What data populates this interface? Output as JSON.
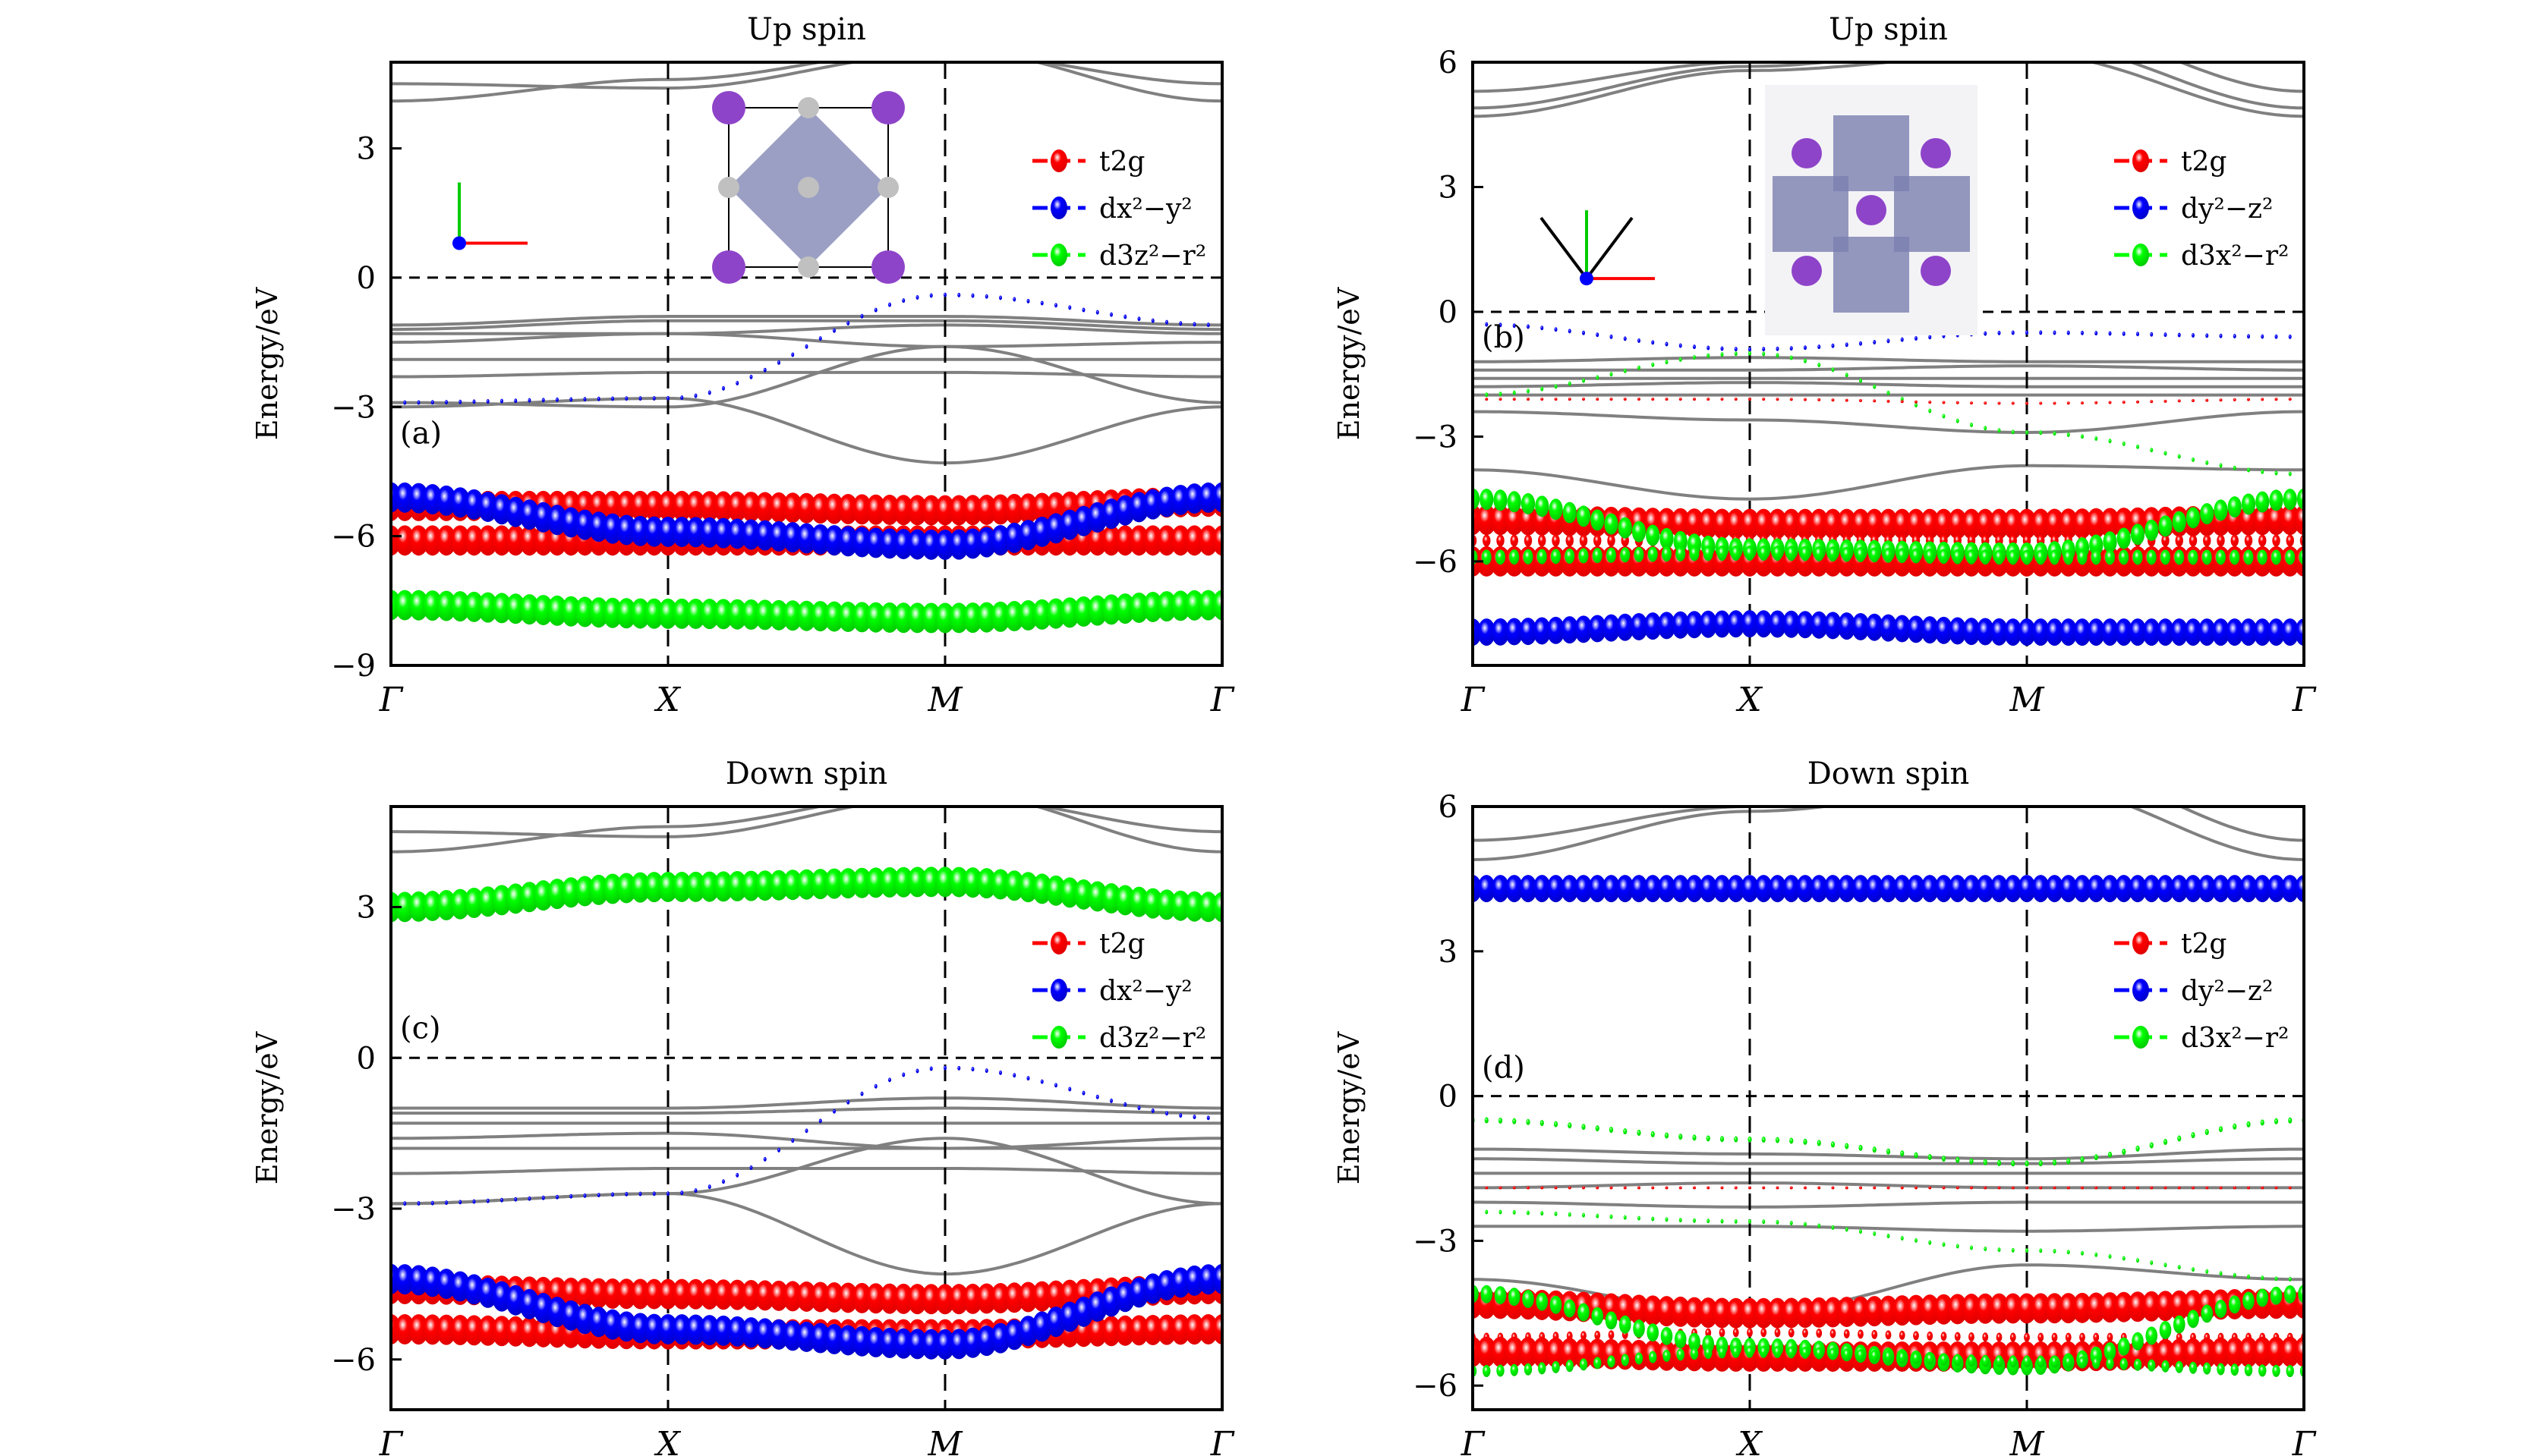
{
  "chart_data": [
    {
      "id": "a",
      "type": "line",
      "title": "Up spin",
      "panel_label": "(a)",
      "ylabel": "Energy/eV",
      "ylim": [
        -9,
        5
      ],
      "yticks": [
        -9,
        -6,
        -3,
        0,
        3
      ],
      "ytick_labels": [
        "−9",
        "−6",
        "−3",
        "0",
        "3"
      ],
      "x": [
        0,
        1,
        2,
        3
      ],
      "xtick_labels": [
        "Γ",
        "X",
        "M",
        "Γ"
      ],
      "axis_inset": "b(y) / a(x)",
      "legend": [
        "t2g",
        "dx²−y²",
        "d3z²−r²"
      ],
      "legend_placement": "top-right",
      "fermi_level": 0,
      "gray_bands": [
        [
          4.5,
          4.4,
          5.2,
          4.5
        ],
        [
          4.1,
          4.6,
          5.3,
          4.1
        ],
        [
          -1.1,
          -0.9,
          -0.9,
          -1.1
        ],
        [
          -1.2,
          -1.0,
          -1.0,
          -1.2
        ],
        [
          -1.3,
          -1.3,
          -1.1,
          -1.3
        ],
        [
          -1.5,
          -1.3,
          -1.6,
          -1.5
        ],
        [
          -1.9,
          -1.9,
          -1.9,
          -1.9
        ],
        [
          -2.3,
          -2.2,
          -2.2,
          -2.3
        ],
        [
          -3.0,
          -2.8,
          -4.3,
          -3.0
        ],
        [
          -2.9,
          -3.0,
          -1.6,
          -2.9
        ]
      ],
      "series": [
        {
          "name": "t2g",
          "color": "#ff0000",
          "values": [
            -5.3,
            -5.3,
            -5.4,
            -5.2
          ],
          "weight": 1.0
        },
        {
          "name": "t2g",
          "color": "#ff0000",
          "values": [
            -6.1,
            -6.1,
            -6.1,
            -6.1
          ],
          "weight": 1.0
        },
        {
          "name": "dx2-y2",
          "color": "#0000ff",
          "values": [
            -5.1,
            -5.9,
            -6.2,
            -5.1
          ],
          "weight": 1.0
        },
        {
          "name": "d3z2-r2",
          "color": "#00ff00",
          "values": [
            -7.6,
            -7.8,
            -7.9,
            -7.6
          ],
          "weight": 1.0
        },
        {
          "name": "dx2-y2",
          "color": "#0000ff",
          "values": [
            -2.9,
            -2.8,
            -0.4,
            -1.1
          ],
          "weight": 0.15
        }
      ]
    },
    {
      "id": "b",
      "type": "line",
      "title": "Up spin",
      "panel_label": "(b)",
      "ylabel": "Energy/eV",
      "ylim": [
        -8.5,
        6
      ],
      "yticks": [
        -6,
        -3,
        0,
        3,
        6
      ],
      "ytick_labels": [
        "−6",
        "−3",
        "0",
        "3",
        "6"
      ],
      "x": [
        0,
        1,
        2,
        3
      ],
      "xtick_labels": [
        "Γ",
        "X",
        "M",
        "Γ"
      ],
      "axis_inset": "y, b, x / a",
      "legend": [
        "t2g",
        "dy²−z²",
        "d3x²−r²"
      ],
      "legend_placement": "top-right",
      "fermi_level": 0,
      "gray_bands": [
        [
          5.3,
          6.0,
          7.0,
          5.3
        ],
        [
          4.9,
          5.9,
          6.5,
          4.9
        ],
        [
          4.7,
          5.8,
          6.2,
          4.7
        ],
        [
          -1.2,
          -1.1,
          -1.2,
          -1.2
        ],
        [
          -1.4,
          -1.4,
          -1.3,
          -1.4
        ],
        [
          -1.6,
          -1.6,
          -1.6,
          -1.6
        ],
        [
          -1.8,
          -1.7,
          -1.8,
          -1.8
        ],
        [
          -2.0,
          -2.0,
          -2.0,
          -2.0
        ],
        [
          -2.4,
          -2.6,
          -2.9,
          -2.4
        ],
        [
          -3.8,
          -4.5,
          -3.7,
          -3.8
        ]
      ],
      "series": [
        {
          "name": "dy2-z2",
          "color": "#0000ff",
          "values": [
            -0.3,
            -0.9,
            -0.5,
            -0.6
          ],
          "weight": 0.15
        },
        {
          "name": "d3x2-r2",
          "color": "#00ff00",
          "values": [
            -2.0,
            -1.0,
            -2.9,
            -3.9
          ],
          "weight": 0.15
        },
        {
          "name": "t2g",
          "color": "#ff0000",
          "values": [
            -2.1,
            -2.1,
            -2.2,
            -2.1
          ],
          "weight": 0.1
        },
        {
          "name": "t2g",
          "color": "#ff0000",
          "values": [
            -5.0,
            -5.1,
            -5.1,
            -5.0
          ],
          "weight": 1.0
        },
        {
          "name": "t2g",
          "color": "#ff0000",
          "values": [
            -5.5,
            -5.5,
            -5.5,
            -5.5
          ],
          "weight": 0.4
        },
        {
          "name": "t2g",
          "color": "#ff0000",
          "values": [
            -6.0,
            -6.0,
            -6.0,
            -6.0
          ],
          "weight": 1.0
        },
        {
          "name": "d3x2-r2",
          "color": "#00ff00",
          "values": [
            -4.5,
            -5.7,
            -5.8,
            -4.5
          ],
          "weight": 0.7
        },
        {
          "name": "d3x2-r2",
          "color": "#00ff00",
          "values": [
            -5.9,
            -5.8,
            -5.9,
            -5.9
          ],
          "weight": 0.5
        },
        {
          "name": "dy2-z2",
          "color": "#0000ff",
          "values": [
            -7.7,
            -7.5,
            -7.7,
            -7.7
          ],
          "weight": 0.9
        }
      ]
    },
    {
      "id": "c",
      "type": "line",
      "title": "Down spin",
      "panel_label": "(c)",
      "ylabel": "Energy/eV",
      "ylim": [
        -7,
        5
      ],
      "yticks": [
        -6,
        -3,
        0,
        3
      ],
      "ytick_labels": [
        "−6",
        "−3",
        "0",
        "3"
      ],
      "x": [
        0,
        1,
        2,
        3
      ],
      "xtick_labels": [
        "Γ",
        "X",
        "M",
        "Γ"
      ],
      "legend": [
        "t2g",
        "dx²−y²",
        "d3z²−r²"
      ],
      "legend_placement": "right",
      "fermi_level": 0,
      "gray_bands": [
        [
          4.5,
          4.4,
          5.2,
          4.5
        ],
        [
          4.1,
          4.6,
          5.3,
          4.1
        ],
        [
          -1.0,
          -1.0,
          -0.8,
          -1.0
        ],
        [
          -1.1,
          -1.1,
          -1.0,
          -1.1
        ],
        [
          -1.3,
          -1.3,
          -1.3,
          -1.3
        ],
        [
          -1.6,
          -1.5,
          -1.8,
          -1.6
        ],
        [
          -1.8,
          -1.8,
          -1.8,
          -1.8
        ],
        [
          -2.3,
          -2.2,
          -2.2,
          -2.3
        ],
        [
          -2.9,
          -2.7,
          -4.3,
          -2.9
        ],
        [
          -2.9,
          -2.7,
          -1.6,
          -2.9
        ]
      ],
      "series": [
        {
          "name": "d3z2-r2",
          "color": "#00ff00",
          "values": [
            3.0,
            3.4,
            3.5,
            3.0
          ],
          "weight": 1.0
        },
        {
          "name": "dx2-y2",
          "color": "#0000ff",
          "values": [
            -2.9,
            -2.7,
            -0.2,
            -1.2
          ],
          "weight": 0.15
        },
        {
          "name": "t2g",
          "color": "#ff0000",
          "values": [
            -4.6,
            -4.7,
            -4.8,
            -4.6
          ],
          "weight": 1.0
        },
        {
          "name": "t2g",
          "color": "#ff0000",
          "values": [
            -5.4,
            -5.5,
            -5.5,
            -5.4
          ],
          "weight": 1.0
        },
        {
          "name": "dx2-y2",
          "color": "#0000ff",
          "values": [
            -4.4,
            -5.4,
            -5.7,
            -4.4
          ],
          "weight": 1.0
        }
      ]
    },
    {
      "id": "d",
      "type": "line",
      "title": "Down spin",
      "panel_label": "(d)",
      "ylabel": "Energy/eV",
      "ylim": [
        -6.5,
        6
      ],
      "yticks": [
        -6,
        -3,
        0,
        3,
        6
      ],
      "ytick_labels": [
        "−6",
        "−3",
        "0",
        "3",
        "6"
      ],
      "x": [
        0,
        1,
        2,
        3
      ],
      "xtick_labels": [
        "Γ",
        "X",
        "M",
        "Γ"
      ],
      "legend": [
        "t2g",
        "dy²−z²",
        "d3x²−r²"
      ],
      "legend_placement": "right",
      "fermi_level": 0,
      "gray_bands": [
        [
          5.3,
          6.0,
          7.0,
          5.3
        ],
        [
          4.9,
          5.9,
          6.5,
          4.9
        ],
        [
          -1.1,
          -1.2,
          -1.3,
          -1.1
        ],
        [
          -1.3,
          -1.4,
          -1.4,
          -1.3
        ],
        [
          -1.6,
          -1.6,
          -1.6,
          -1.6
        ],
        [
          -1.9,
          -1.8,
          -1.9,
          -1.9
        ],
        [
          -2.2,
          -2.3,
          -2.2,
          -2.2
        ],
        [
          -2.7,
          -2.7,
          -2.8,
          -2.7
        ],
        [
          -3.8,
          -4.5,
          -3.5,
          -3.8
        ]
      ],
      "series": [
        {
          "name": "dy2-z2",
          "color": "#0000ff",
          "values": [
            4.3,
            4.3,
            4.3,
            4.3
          ],
          "weight": 0.9
        },
        {
          "name": "d3x2-r2",
          "color": "#00ff00",
          "values": [
            -0.5,
            -0.9,
            -1.4,
            -0.5
          ],
          "weight": 0.2
        },
        {
          "name": "t2g",
          "color": "#ff0000",
          "values": [
            -1.9,
            -1.9,
            -1.9,
            -1.9
          ],
          "weight": 0.1
        },
        {
          "name": "d3x2-r2",
          "color": "#00ff00",
          "values": [
            -2.4,
            -2.6,
            -3.2,
            -3.8
          ],
          "weight": 0.15
        },
        {
          "name": "t2g",
          "color": "#ff0000",
          "values": [
            -4.3,
            -4.5,
            -4.4,
            -4.3
          ],
          "weight": 1.0
        },
        {
          "name": "t2g",
          "color": "#ff0000",
          "values": [
            -5.0,
            -4.9,
            -5.0,
            -5.0
          ],
          "weight": 0.3
        },
        {
          "name": "t2g",
          "color": "#ff0000",
          "values": [
            -5.3,
            -5.4,
            -5.4,
            -5.3
          ],
          "weight": 1.0
        },
        {
          "name": "d3x2-r2",
          "color": "#00ff00",
          "values": [
            -4.1,
            -5.2,
            -5.6,
            -4.1
          ],
          "weight": 0.6
        },
        {
          "name": "d3x2-r2",
          "color": "#00ff00",
          "values": [
            -5.7,
            -5.3,
            -5.5,
            -5.7
          ],
          "weight": 0.4
        }
      ]
    }
  ]
}
